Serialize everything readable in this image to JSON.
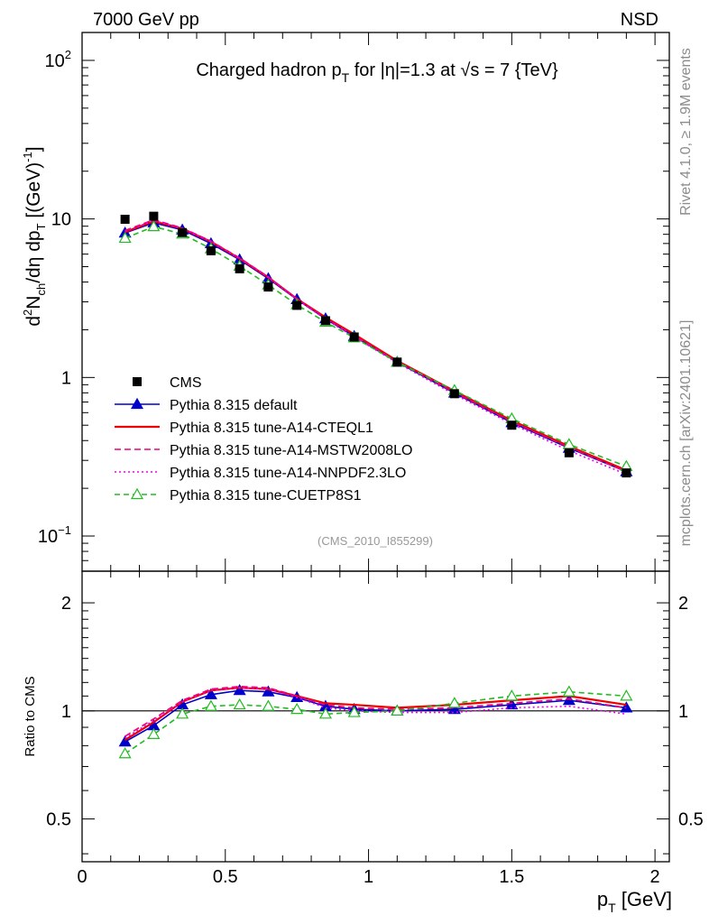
{
  "header": {
    "left": "7000 GeV pp",
    "right": "NSD"
  },
  "side_labels": {
    "rivet": "Rivet 4.1.0, ≥ 1.9M events",
    "mcplots": "mcplots.cern.ch [arXiv:2401.10621]"
  },
  "chart_data": {
    "type": "line",
    "title": "Charged hadron p_T for |η|=1.3 at √s = 7 {TeV}",
    "title_parts": {
      "a": "Charged hadron p",
      "sub": "T",
      "b": " for |η|=1.3 at √s = 7 {TeV}"
    },
    "analysis_tag": "(CMS_2010_I855299)",
    "xlabel": "p_T [GeV]",
    "xlabel_parts": {
      "main": "p",
      "sub": "T",
      "unit": " [GeV]"
    },
    "ylabel": "d²N_ch/dη dp_T [(GeV)⁻¹]",
    "ylabel_parts": {
      "p1": "d",
      "sup2": "2",
      "p2": "N",
      "sub_ch": "ch",
      "p3": "/dη  dp",
      "sub_t": "T",
      "p4": " [(GeV)",
      "sup_m1": "-1",
      "p5": "]"
    },
    "ratio_ylabel": "Ratio to CMS",
    "xlim": [
      0,
      2.05
    ],
    "ylim_main": [
      0.06,
      150
    ],
    "ylim_ratio": [
      0.38,
      2.45
    ],
    "x_ticks": [
      {
        "v": 0,
        "label": "0"
      },
      {
        "v": 0.5,
        "label": "0.5"
      },
      {
        "v": 1,
        "label": "1"
      },
      {
        "v": 1.5,
        "label": "1.5"
      },
      {
        "v": 2,
        "label": "2"
      }
    ],
    "y_ticks_main": [
      {
        "v": 100,
        "label": "10",
        "sup": "2"
      },
      {
        "v": 10,
        "label": "10",
        "sup": ""
      },
      {
        "v": 1,
        "label": "1",
        "sup": ""
      },
      {
        "v": 0.1,
        "label": "10",
        "sup": "−1"
      }
    ],
    "y_ticks_ratio": [
      {
        "v": 2,
        "label": "2"
      },
      {
        "v": 1,
        "label": "1"
      },
      {
        "v": 0.5,
        "label": "0.5"
      }
    ],
    "x": [
      0.15,
      0.25,
      0.35,
      0.45,
      0.55,
      0.65,
      0.75,
      0.85,
      0.95,
      1.1,
      1.3,
      1.5,
      1.7,
      1.9
    ],
    "data_series": {
      "name": "CMS",
      "values": [
        9.95,
        10.4,
        8.2,
        6.3,
        4.85,
        3.72,
        2.85,
        2.28,
        1.8,
        1.25,
        0.79,
        0.5,
        0.335,
        0.25
      ]
    },
    "series": [
      {
        "name": "Pythia 8.315 default",
        "color": "#0000cc",
        "dash": "",
        "marker": "triangle-filled",
        "ratio": [
          0.82,
          0.91,
          1.04,
          1.11,
          1.14,
          1.13,
          1.09,
          1.03,
          1.01,
          1.0,
          1.01,
          1.04,
          1.07,
          1.02
        ]
      },
      {
        "name": "Pythia 8.315 tune-A14-CTEQL1",
        "color": "#ee0000",
        "dash": "",
        "marker": "none",
        "ratio": [
          0.83,
          0.93,
          1.06,
          1.14,
          1.16,
          1.15,
          1.1,
          1.05,
          1.04,
          1.02,
          1.04,
          1.07,
          1.1,
          1.04
        ]
      },
      {
        "name": "Pythia 8.315 tune-A14-MSTW2008LO",
        "color": "#ee0077",
        "dash": "7,4",
        "marker": "none",
        "ratio": [
          0.85,
          0.95,
          1.07,
          1.15,
          1.17,
          1.16,
          1.1,
          1.04,
          1.02,
          1.01,
          1.02,
          1.05,
          1.08,
          1.02
        ]
      },
      {
        "name": "Pythia 8.315 tune-A14-NNPDF2.3LO",
        "color": "#ee00ee",
        "dash": "2,3",
        "marker": "none",
        "ratio": [
          0.84,
          0.94,
          1.06,
          1.14,
          1.16,
          1.15,
          1.09,
          1.02,
          1.0,
          0.99,
          0.99,
          1.02,
          1.03,
          0.98
        ]
      },
      {
        "name": "Pythia 8.315 tune-CUETP8S1",
        "color": "#22bb22",
        "dash": "6,4",
        "marker": "triangle-open",
        "ratio": [
          0.76,
          0.86,
          0.98,
          1.03,
          1.04,
          1.03,
          1.01,
          0.98,
          0.99,
          1.0,
          1.05,
          1.1,
          1.13,
          1.1
        ]
      }
    ]
  }
}
